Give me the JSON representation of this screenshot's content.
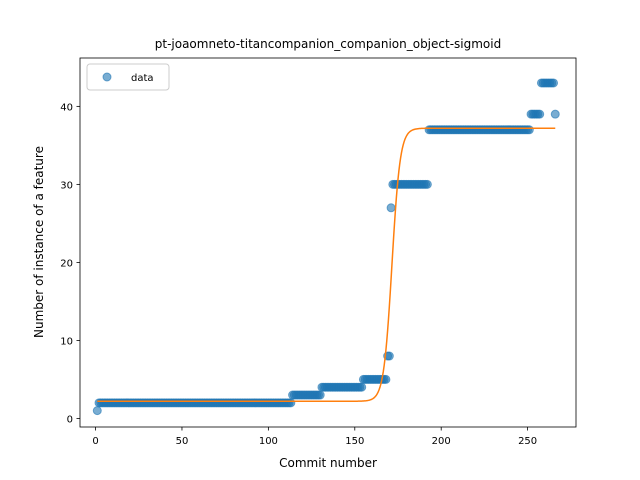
{
  "chart_data": {
    "type": "scatter",
    "title": "pt-joaomneto-titancompanion_companion_object-sigmoid",
    "xlabel": "Commit number",
    "ylabel": "Number of instance of a feature",
    "xlim": [
      -9,
      278
    ],
    "ylim": [
      -1.1,
      46.2
    ],
    "xticks": [
      0,
      50,
      100,
      150,
      200,
      250
    ],
    "yticks": [
      0,
      10,
      20,
      30,
      40
    ],
    "grid": false,
    "legend_position": "top-left",
    "colors": {
      "scatter": "#1f77b4",
      "fit": "#ff7f0e"
    },
    "legend": [
      {
        "label": "data",
        "marker": "circle"
      }
    ],
    "series": [
      {
        "name": "data",
        "kind": "scatter",
        "segments": [
          {
            "x_start": 1,
            "x_end": 1,
            "y": 1
          },
          {
            "x_start": 2,
            "x_end": 113,
            "y": 2
          },
          {
            "x_start": 114,
            "x_end": 130,
            "y": 3
          },
          {
            "x_start": 131,
            "x_end": 154,
            "y": 4
          },
          {
            "x_start": 155,
            "x_end": 168,
            "y": 5
          },
          {
            "x_start": 169,
            "x_end": 170,
            "y": 8
          },
          {
            "x_start": 171,
            "x_end": 171,
            "y": 27
          },
          {
            "x_start": 172,
            "x_end": 192,
            "y": 30
          },
          {
            "x_start": 193,
            "x_end": 251,
            "y": 37
          },
          {
            "x_start": 252,
            "x_end": 257,
            "y": 39
          },
          {
            "x_start": 258,
            "x_end": 265,
            "y": 43
          },
          {
            "x_start": 266,
            "x_end": 266,
            "y": 39
          }
        ]
      },
      {
        "kind": "line",
        "function": "sigmoid",
        "x_range": [
          1,
          266
        ],
        "params": {
          "L": 35,
          "k": 0.42,
          "x0": 171.5,
          "b": 2.2
        }
      }
    ]
  }
}
